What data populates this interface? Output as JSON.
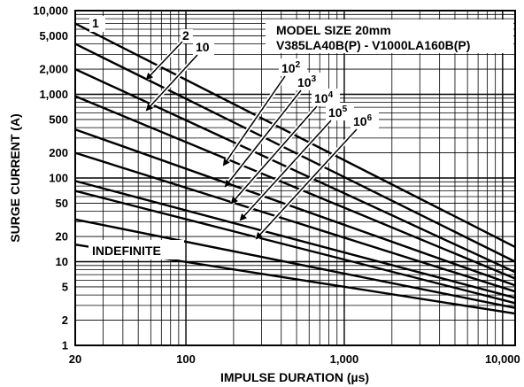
{
  "chart_data": {
    "type": "line",
    "title": "",
    "xlabel": "IMPULSE DURATION (µs)",
    "ylabel": "SURGE CURRENT (A)",
    "x_scale": "log",
    "y_scale": "log",
    "xlim": [
      20,
      12000
    ],
    "ylim": [
      1,
      10000
    ],
    "x_ticks": [
      {
        "value": 20,
        "label": "20"
      },
      {
        "value": 100,
        "label": "100"
      },
      {
        "value": 1000,
        "label": "1,000"
      },
      {
        "value": 10000,
        "label": "10,000"
      }
    ],
    "y_ticks": [
      {
        "value": 1,
        "label": "1"
      },
      {
        "value": 2,
        "label": "2"
      },
      {
        "value": 5,
        "label": "5"
      },
      {
        "value": 10,
        "label": "10"
      },
      {
        "value": 20,
        "label": "20"
      },
      {
        "value": 50,
        "label": "50"
      },
      {
        "value": 100,
        "label": "100"
      },
      {
        "value": 200,
        "label": "200"
      },
      {
        "value": 500,
        "label": "500"
      },
      {
        "value": 1000,
        "label": "1,000"
      },
      {
        "value": 2000,
        "label": "2,000"
      },
      {
        "value": 5000,
        "label": "5,000"
      },
      {
        "value": 10000,
        "label": "10,000"
      }
    ],
    "grid": true,
    "series": [
      {
        "x": [
          20,
          12000
        ],
        "y": [
          7000,
          15
        ]
      },
      {
        "x": [
          20,
          12000
        ],
        "y": [
          4000,
          10
        ]
      },
      {
        "x": [
          20,
          12000
        ],
        "y": [
          2000,
          7.5
        ]
      },
      {
        "x": [
          20,
          12000
        ],
        "y": [
          950,
          6.3
        ]
      },
      {
        "x": [
          20,
          12000
        ],
        "y": [
          380,
          5.2
        ]
      },
      {
        "x": [
          20,
          12000
        ],
        "y": [
          200,
          4.4
        ]
      },
      {
        "x": [
          20,
          12000
        ],
        "y": [
          92,
          3.7
        ]
      },
      {
        "x": [
          20,
          12000
        ],
        "y": [
          70,
          3.2
        ]
      },
      {
        "x": [
          20,
          12000
        ],
        "y": [
          32,
          2.8
        ]
      },
      {
        "x": [
          20,
          12000
        ],
        "y": [
          16,
          2.4
        ]
      }
    ],
    "annotations": {
      "model_box": {
        "line1": "MODEL SIZE 20mm",
        "line2": "V385LA40B(P) - V1000LA160B(P)"
      },
      "indefinite": "INDEFINITE",
      "curve_labels": [
        {
          "base": "1",
          "exp": ""
        },
        {
          "base": "2",
          "exp": ""
        },
        {
          "base": "10",
          "exp": ""
        },
        {
          "base": "10",
          "exp": "2"
        },
        {
          "base": "10",
          "exp": "3"
        },
        {
          "base": "10",
          "exp": "4"
        },
        {
          "base": "10",
          "exp": "5"
        },
        {
          "base": "10",
          "exp": "6"
        }
      ]
    }
  }
}
